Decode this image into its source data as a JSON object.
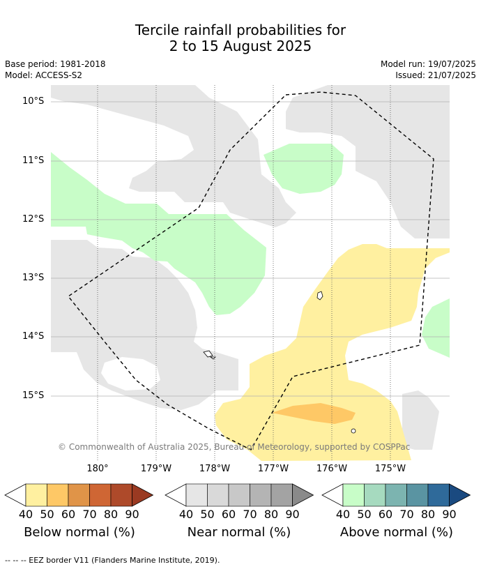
{
  "title_line1": "Tercile rainfall probabilities for",
  "title_line2": "2 to 15 August 2025",
  "base_period": "Base period: 1981-2018",
  "model": "Model: ACCESS-S2",
  "model_run": "Model run: 19/07/2025",
  "issued": "Issued: 21/07/2025",
  "lat_labels": [
    "10°S",
    "11°S",
    "12°S",
    "13°S",
    "14°S",
    "15°S"
  ],
  "lon_labels": [
    "180°",
    "179°W",
    "178°W",
    "177°W",
    "176°W",
    "175°W"
  ],
  "copyright": "© Commonwealth of Australia 2025, Bureau of Meteorology, supported by COSPPac",
  "colorbars": [
    {
      "label": "Below normal (%)",
      "colors": [
        "#fff0a0",
        "#fec866",
        "#e09448",
        "#cf6634",
        "#ae4a2a",
        "#9a3a22"
      ]
    },
    {
      "label": "Near normal (%)",
      "colors": [
        "#e6e6e6",
        "#d9d9d9",
        "#c8c8c8",
        "#b4b4b4",
        "#a3a3a3",
        "#8a8a8a"
      ]
    },
    {
      "label": "Above normal (%)",
      "colors": [
        "#c8fdc8",
        "#a6dabf",
        "#7cb4b0",
        "#5a94a2",
        "#2f6a9a",
        "#1a4a80"
      ]
    }
  ],
  "ticks": [
    "40",
    "50",
    "60",
    "70",
    "80",
    "90"
  ],
  "footer": "--  --  -- EEZ border V11 (Flanders Marine Institute, 2019)."
}
